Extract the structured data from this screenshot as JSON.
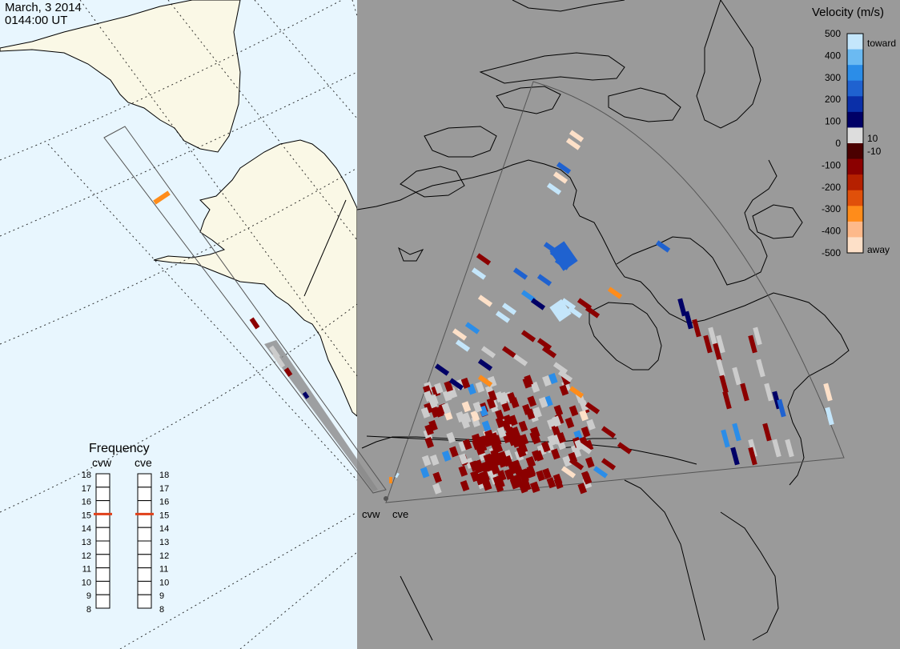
{
  "header": {
    "date": "March, 3 2014",
    "time": "0144:00 UT"
  },
  "legend": {
    "title": "Velocity (m/s)",
    "ticks": [
      "500",
      "400",
      "300",
      "200",
      "100",
      "0",
      "-100",
      "-200",
      "-300",
      "-400",
      "-500"
    ],
    "inner_ticks": [
      "10",
      "-10"
    ],
    "toward_label": "toward",
    "away_label": "away",
    "colors": [
      "#fde0c8",
      "#fdb98a",
      "#ff8c1a",
      "#e0500a",
      "#b52000",
      "#8b0000",
      "#4b0000",
      "#dddddd",
      "#000066",
      "#0a2fa8",
      "#1f62d0",
      "#2b8de8",
      "#6bbaf2",
      "#c4e6fb"
    ]
  },
  "frequency": {
    "title": "Frequency",
    "radars": [
      "cvw",
      "cve"
    ],
    "scale": [
      "18",
      "17",
      "16",
      "15",
      "14",
      "13",
      "12",
      "11",
      "10",
      "9",
      "8"
    ],
    "selected_mhz": 15,
    "marker_color": "#e0401a"
  },
  "radar_sites": {
    "west_label": "cvw",
    "east_label": "cve"
  },
  "colors": {
    "ocean": "#e8f6fe",
    "land": "#faf8e6",
    "night": "#9a9a9a",
    "ground_scatter": "#cccccc"
  }
}
